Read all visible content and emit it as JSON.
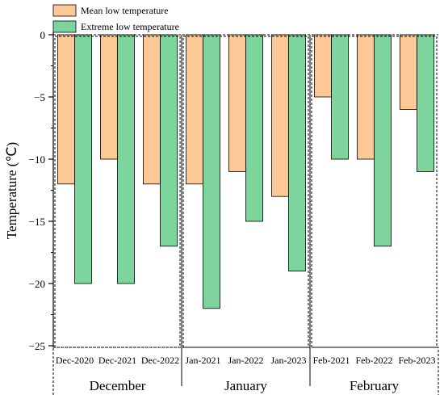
{
  "chart_data": {
    "type": "bar",
    "ylabel": "Temperature (℃)",
    "ylim": [
      -25,
      0
    ],
    "yticks": [
      0,
      -5,
      -10,
      -15,
      -20,
      -25
    ],
    "categories": [
      "Dec-2020",
      "Dec-2021",
      "Dec-2022",
      "Jan-2021",
      "Jan-2022",
      "Jan-2023",
      "Feb-2021",
      "Feb-2022",
      "Feb-2023"
    ],
    "groups": [
      {
        "label": "December",
        "categories": [
          "Dec-2020",
          "Dec-2021",
          "Dec-2022"
        ]
      },
      {
        "label": "January",
        "categories": [
          "Jan-2021",
          "Jan-2022",
          "Jan-2023"
        ]
      },
      {
        "label": "February",
        "categories": [
          "Feb-2021",
          "Feb-2022",
          "Feb-2023"
        ]
      }
    ],
    "series": [
      {
        "name": "Mean low temperature",
        "color": "#fcc896",
        "values": [
          -12,
          -10,
          -12,
          -12,
          -11,
          -13,
          -5,
          -10,
          -6
        ]
      },
      {
        "name": "Extreme low temperature",
        "color": "#7dd49c",
        "values": [
          -20,
          -20,
          -17,
          -22,
          -15,
          -19,
          -10,
          -17,
          -11
        ]
      }
    ],
    "legend_position": "top-left",
    "grid": false
  }
}
